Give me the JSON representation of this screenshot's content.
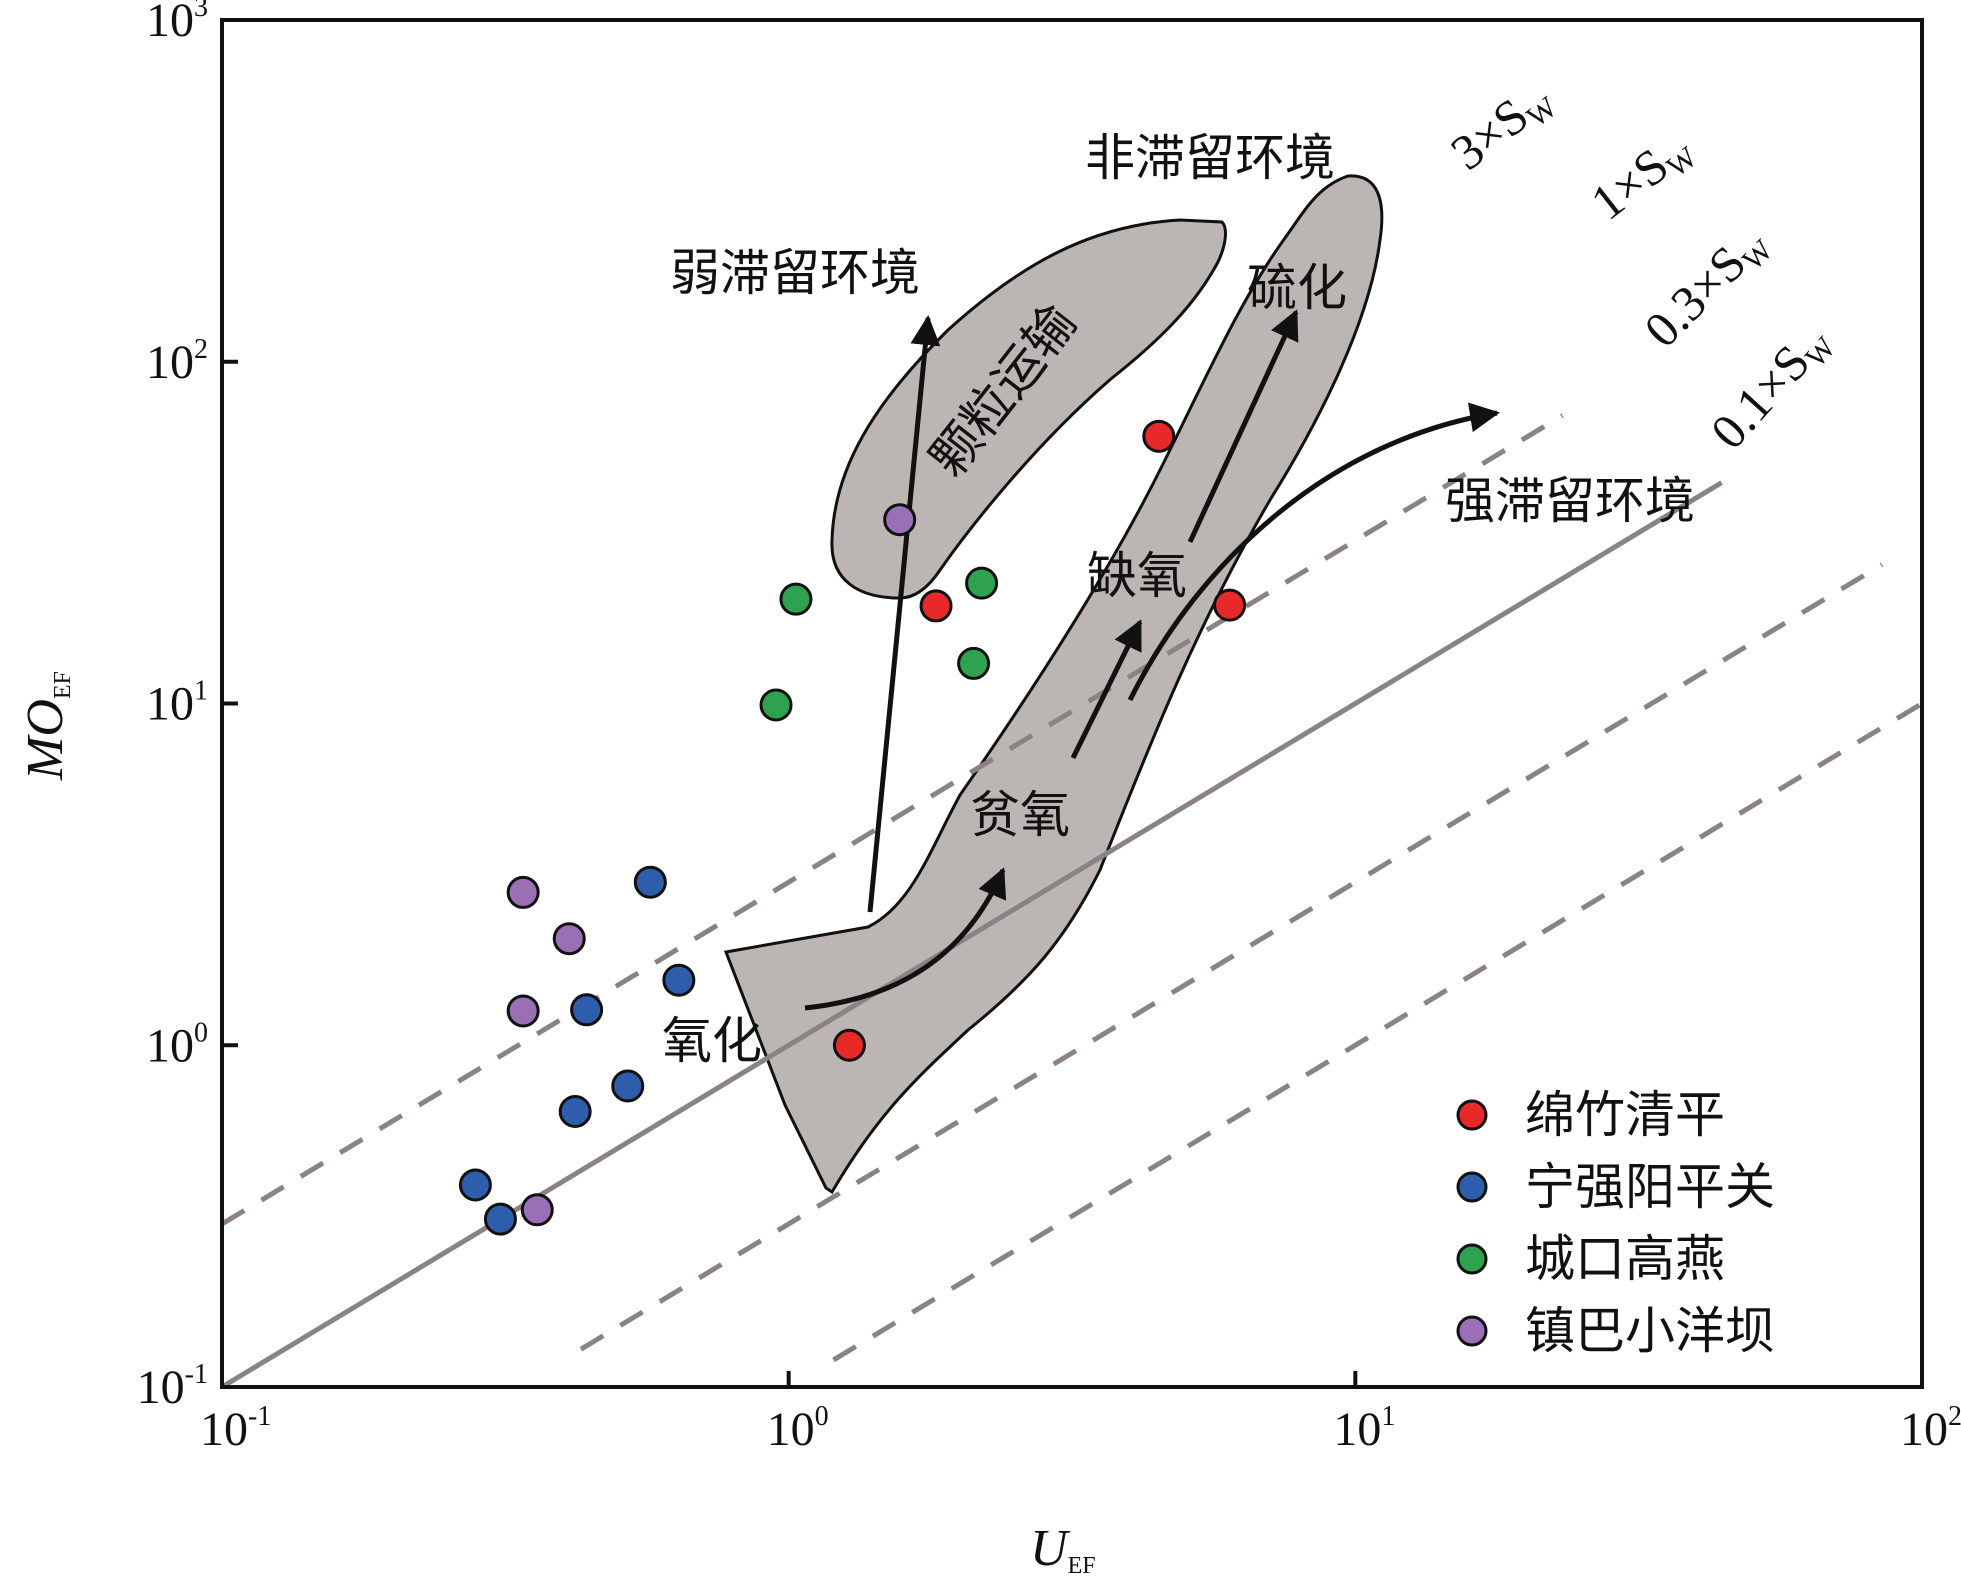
{
  "chart_data": {
    "type": "scatter",
    "x_scale": "log",
    "y_scale": "log",
    "xlim": [
      0.1,
      100
    ],
    "ylim": [
      0.1,
      1000
    ],
    "x_ticks": [
      {
        "value": 0.1,
        "base": "10",
        "exp": "-1"
      },
      {
        "value": 1,
        "base": "10",
        "exp": "0"
      },
      {
        "value": 10,
        "base": "10",
        "exp": "1"
      },
      {
        "value": 100,
        "base": "10",
        "exp": "2"
      }
    ],
    "y_ticks": [
      {
        "value": 0.1,
        "base": "10",
        "exp": "-1"
      },
      {
        "value": 1,
        "base": "10",
        "exp": "0"
      },
      {
        "value": 10,
        "base": "10",
        "exp": "1"
      },
      {
        "value": 100,
        "base": "10",
        "exp": "2"
      },
      {
        "value": 1000,
        "base": "10",
        "exp": "3"
      }
    ],
    "xlabel": {
      "main": "U",
      "sub": "EF"
    },
    "ylabel": {
      "main": "MO",
      "sub": "EF"
    },
    "reference_lines": [
      {
        "label": "3×S",
        "sub": "W",
        "factor": 3,
        "style": "dashed",
        "x_from": 0.1,
        "x_to": 23.2
      },
      {
        "label": "1×S",
        "sub": "W",
        "factor": 1,
        "style": "solid",
        "x_from": 0.1,
        "x_to": 44.3
      },
      {
        "label": "0.3×S",
        "sub": "W",
        "factor": 0.3,
        "style": "dashed",
        "x_from": 0.43,
        "x_to": 85
      },
      {
        "label": "0.1×S",
        "sub": "W",
        "factor": 0.1,
        "style": "dashed",
        "x_from": 1.2,
        "x_to": 100
      }
    ],
    "regions": [
      {
        "name": "particle-transport",
        "label": "颗粒运输"
      },
      {
        "name": "redox-path",
        "labels": [
          "氧化",
          "贫氧",
          "缺氧",
          "硫化"
        ]
      }
    ],
    "annotations": [
      "弱滞留环境",
      "非滞留环境",
      "强滞留环境"
    ],
    "series": [
      {
        "name": "绵竹清平",
        "color": "#e8292a",
        "points": [
          [
            1.28,
            1.0
          ],
          [
            1.82,
            19.3
          ],
          [
            4.5,
            60.5
          ],
          [
            6.0,
            19.4
          ]
        ]
      },
      {
        "name": "宁强阳平关",
        "color": "#2e5eab",
        "points": [
          [
            0.57,
            3.0
          ],
          [
            0.64,
            1.55
          ],
          [
            0.44,
            1.27
          ],
          [
            0.52,
            0.76
          ],
          [
            0.42,
            0.64
          ],
          [
            0.28,
            0.39
          ],
          [
            0.31,
            0.31
          ]
        ]
      },
      {
        "name": "城口高燕",
        "color": "#2ea24e",
        "points": [
          [
            1.03,
            20.2
          ],
          [
            0.95,
            9.9
          ],
          [
            2.19,
            22.5
          ],
          [
            2.12,
            13.1
          ]
        ]
      },
      {
        "name": "镇巴小洋坝",
        "color": "#9b6fb6",
        "points": [
          [
            1.57,
            34.5
          ],
          [
            0.34,
            2.8
          ],
          [
            0.41,
            2.05
          ],
          [
            0.34,
            1.26
          ],
          [
            0.36,
            0.33
          ]
        ]
      }
    ]
  }
}
